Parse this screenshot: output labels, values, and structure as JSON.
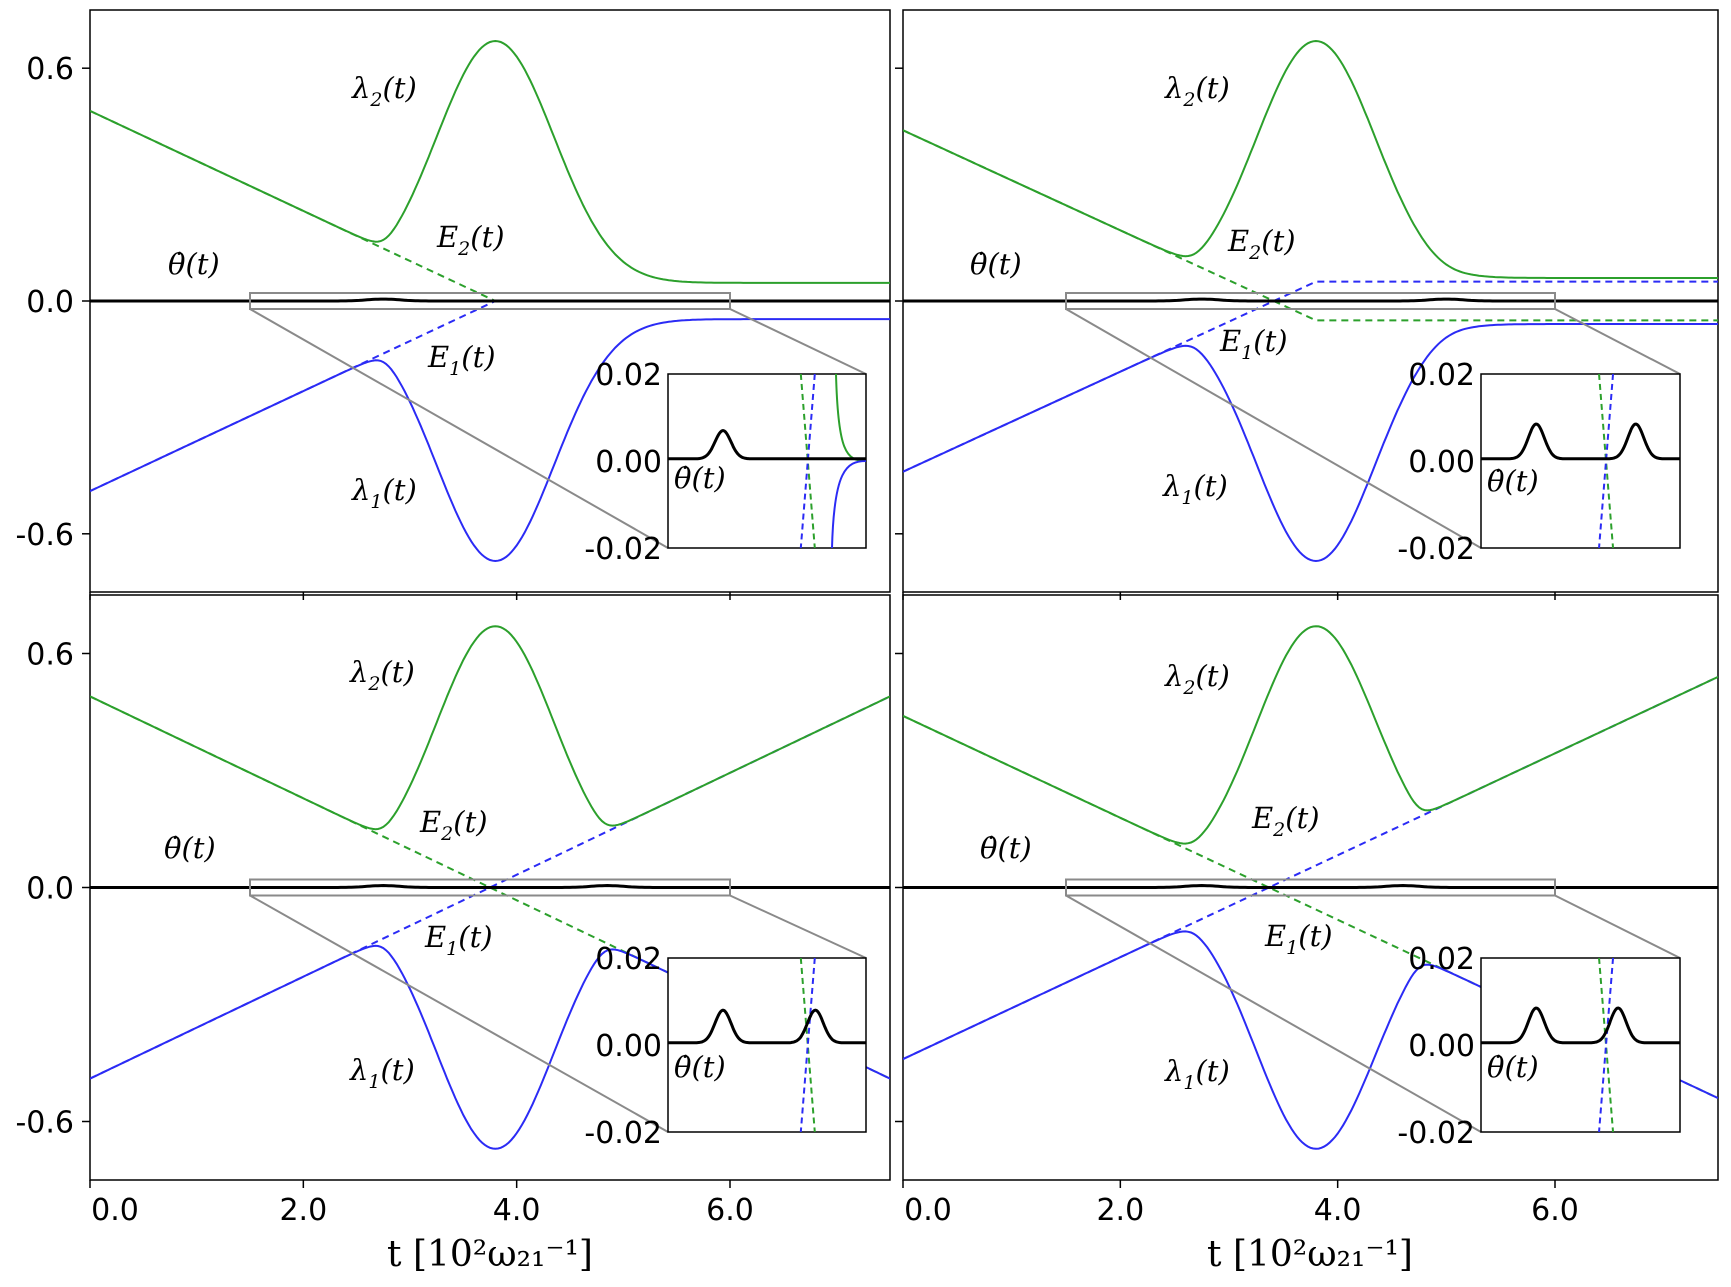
{
  "figure": {
    "xlabel": "t [10²ω₂₁⁻¹]",
    "xticks": [
      "0.0",
      "2.0",
      "4.0",
      "6.0"
    ],
    "yticks": [
      "0.6",
      "0.0",
      "-0.6"
    ],
    "inset_yticks": [
      "0.02",
      "0.00",
      "-0.02"
    ]
  },
  "labels": {
    "theta": "θ̇(t)",
    "lambda": "λ",
    "E": "E",
    "sub1": "1",
    "sub2": "2",
    "arg": "(t)"
  },
  "colors": {
    "green": "#2ca02c",
    "blue": "#2b2bf5",
    "black": "#000000",
    "gray": "#8a8a8a"
  },
  "chart_data": [
    {
      "type": "line",
      "panel": "top-left",
      "description": "λ1, λ2 adiabatic levels with E1, E2 diabatic levels; crossing then flat",
      "xlim": [
        0.0,
        7.5
      ],
      "ylim": [
        -0.75,
        0.75
      ],
      "series": [
        {
          "name": "E2(t)",
          "style": "dashed green",
          "x": [
            0.0,
            3.8,
            7.5
          ],
          "y": [
            0.49,
            0.0,
            0.0
          ]
        },
        {
          "name": "E1(t)",
          "style": "dashed blue",
          "x": [
            0.0,
            3.8,
            7.5
          ],
          "y": [
            -0.49,
            0.0,
            0.0
          ]
        },
        {
          "name": "λ2(t)",
          "style": "solid green",
          "peak_x": 3.8,
          "peak_y": 0.67,
          "min_x": 2.6,
          "min_y": 0.17,
          "end_y": 0.0
        },
        {
          "name": "λ1(t)",
          "style": "solid blue",
          "trough_x": 3.8,
          "trough_y": -0.67,
          "max_x": 2.6,
          "max_y": -0.17,
          "end_y": 0.0
        },
        {
          "name": "θ̇(t)",
          "style": "solid black",
          "y": 0.0
        }
      ],
      "inset": {
        "xlim": [
          1.5,
          6.0
        ],
        "ylim": [
          -0.02,
          0.02
        ],
        "peaks_x": [
          2.75
        ],
        "peak_y": 0.0065
      }
    },
    {
      "type": "line",
      "panel": "top-right",
      "description": "levels separate to constant gap after crossing",
      "xlim": [
        0.0,
        7.5
      ],
      "ylim": [
        -0.75,
        0.75
      ],
      "series": [
        {
          "name": "E2(t)",
          "style": "dashed green",
          "x": [
            0.0,
            3.8,
            7.5
          ],
          "y": [
            0.44,
            -0.05,
            -0.05
          ]
        },
        {
          "name": "E1(t)",
          "style": "dashed blue",
          "x": [
            0.0,
            3.8,
            7.5
          ],
          "y": [
            -0.44,
            0.05,
            0.05
          ]
        },
        {
          "name": "λ2(t)",
          "style": "solid green",
          "peak_x": 3.8,
          "peak_y": 0.67,
          "min_x": 2.6,
          "min_y": 0.12,
          "end_y": 0.05
        },
        {
          "name": "λ1(t)",
          "style": "solid blue",
          "trough_x": 3.8,
          "trough_y": -0.67,
          "max_x": 2.6,
          "max_y": -0.12,
          "end_y": -0.05
        },
        {
          "name": "θ̇(t)",
          "style": "solid black",
          "y": 0.0
        }
      ],
      "inset": {
        "xlim": [
          1.5,
          6.0
        ],
        "ylim": [
          -0.02,
          0.02
        ],
        "peaks_x": [
          2.75,
          5.0
        ],
        "peak_y": 0.008
      }
    },
    {
      "type": "line",
      "panel": "bottom-left",
      "description": "double crossing (V-shaped diabatic levels)",
      "xlim": [
        0.0,
        7.5
      ],
      "ylim": [
        -0.75,
        0.75
      ],
      "series": [
        {
          "name": "E2(t)",
          "style": "dashed green",
          "x": [
            0.0,
            7.5
          ],
          "y": [
            0.49,
            -0.49
          ]
        },
        {
          "name": "E1(t)",
          "style": "dashed blue",
          "x": [
            0.0,
            7.5
          ],
          "y": [
            -0.49,
            0.49
          ]
        },
        {
          "name": "λ2(t)",
          "style": "solid green",
          "peak_x": 3.8,
          "peak_y": 0.67,
          "min_x": [
            2.6,
            5.0
          ],
          "min_y": 0.17,
          "end_y": 0.49
        },
        {
          "name": "λ1(t)",
          "style": "solid blue",
          "trough_x": 3.8,
          "trough_y": -0.67,
          "max_x": [
            2.6,
            5.0
          ],
          "max_y": -0.17,
          "end_y": -0.49
        },
        {
          "name": "θ̇(t)",
          "style": "solid black",
          "y": 0.0
        }
      ],
      "inset": {
        "xlim": [
          1.5,
          6.0
        ],
        "ylim": [
          -0.02,
          0.02
        ],
        "peaks_x": [
          2.75,
          4.85
        ],
        "peak_y": 0.0075
      }
    },
    {
      "type": "line",
      "panel": "bottom-right",
      "description": "double crossing with unequal gaps",
      "xlim": [
        0.0,
        7.5
      ],
      "ylim": [
        -0.75,
        0.75
      ],
      "series": [
        {
          "name": "E2(t)",
          "style": "dashed green",
          "x": [
            0.0,
            7.5
          ],
          "y": [
            0.44,
            -0.54
          ]
        },
        {
          "name": "E1(t)",
          "style": "dashed blue",
          "x": [
            0.0,
            7.5
          ],
          "y": [
            -0.44,
            0.54
          ]
        },
        {
          "name": "λ2(t)",
          "style": "solid green",
          "peak_x": 3.8,
          "peak_y": 0.67,
          "min_x": [
            2.6,
            5.0
          ],
          "min_y": [
            0.12,
            0.22
          ],
          "end_y": 0.54
        },
        {
          "name": "λ1(t)",
          "style": "solid blue",
          "trough_x": 3.8,
          "trough_y": -0.67,
          "max_x": [
            2.6,
            5.0
          ],
          "max_y": [
            -0.12,
            -0.22
          ],
          "end_y": -0.54
        },
        {
          "name": "θ̇(t)",
          "style": "solid black",
          "y": 0.0
        }
      ],
      "inset": {
        "xlim": [
          1.5,
          6.0
        ],
        "ylim": [
          -0.02,
          0.02
        ],
        "peaks_x": [
          2.75,
          4.6
        ],
        "peak_y": 0.008
      }
    }
  ]
}
